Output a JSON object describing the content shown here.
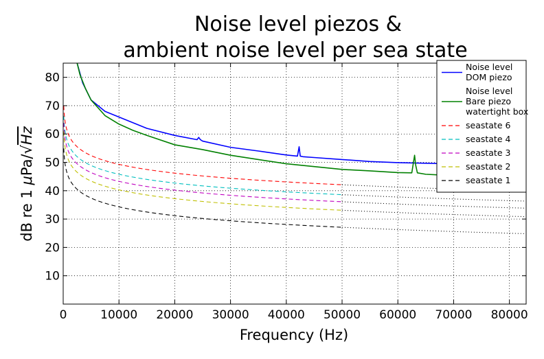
{
  "chart_data": {
    "type": "line",
    "title_lines": [
      "Noise level piezos &",
      "ambient noise level per sea state"
    ],
    "xlabel": "Frequency (Hz)",
    "ylabel_main": "dB re 1 ",
    "ylabel_mu": "μ",
    "ylabel_unit": "Pa/",
    "ylabel_sqrt": "√",
    "ylabel_hz": "Hz",
    "xlim": [
      0,
      83000
    ],
    "ylim": [
      0,
      85
    ],
    "x_ticks": [
      0,
      10000,
      20000,
      30000,
      40000,
      50000,
      60000,
      70000,
      80000
    ],
    "x_tick_labels": [
      "0",
      "10000",
      "20000",
      "30000",
      "40000",
      "50000",
      "60000",
      "70000",
      "80000"
    ],
    "y_ticks": [
      10,
      20,
      30,
      40,
      50,
      60,
      70,
      80
    ],
    "y_tick_labels": [
      "10",
      "20",
      "30",
      "40",
      "50",
      "60",
      "70",
      "80"
    ],
    "grid": true,
    "legend_placement": "top-right",
    "series": [
      {
        "name_lines": [
          "Noise level",
          "DOM piezo"
        ],
        "color": "#0000ff",
        "style": "solid",
        "x": [
          2500,
          3500,
          5000,
          7500,
          10000,
          12500,
          15000,
          20000,
          24000,
          24300,
          24600,
          25000,
          30000,
          35000,
          40000,
          42000,
          42300,
          42500,
          43000,
          45000,
          50000,
          55000,
          60000,
          65000,
          67000
        ],
        "y": [
          85,
          78,
          72,
          68,
          66,
          64,
          62,
          59.5,
          58,
          58.8,
          58,
          57.5,
          55.3,
          54,
          52.6,
          52.2,
          55.5,
          52.2,
          52,
          51.7,
          51,
          50.3,
          49.9,
          49.7,
          49.6
        ]
      },
      {
        "name_lines": [
          "Noise level",
          "Bare piezo",
          "watertight box"
        ],
        "color": "#008000",
        "style": "solid",
        "x": [
          2500,
          3000,
          4000,
          5000,
          7500,
          10000,
          12500,
          15000,
          20000,
          25000,
          30000,
          35000,
          40000,
          45000,
          50000,
          55000,
          60000,
          62500,
          62800,
          63000,
          63200,
          63500,
          65000,
          67000
        ],
        "y": [
          85,
          81,
          76,
          72,
          66.5,
          63.5,
          61.3,
          59.5,
          56.2,
          54.5,
          52.5,
          51,
          49.5,
          48.5,
          47.5,
          47,
          46.4,
          46.3,
          50,
          52.5,
          49,
          46.3,
          45.8,
          45.6
        ]
      },
      {
        "name_lines": [
          "seastate 6"
        ],
        "color": "#ff0000",
        "style": "dashed",
        "formula_offset": 90.5
      },
      {
        "name_lines": [
          "seastate 4"
        ],
        "color": "#00bfbf",
        "style": "dashed",
        "formula_offset": 87
      },
      {
        "name_lines": [
          "seastate 3"
        ],
        "color": "#bf00bf",
        "style": "dashed",
        "formula_offset": 84.5
      },
      {
        "name_lines": [
          "seastate 2"
        ],
        "color": "#bfbf00",
        "style": "dashed",
        "formula_offset": 81.5
      },
      {
        "name_lines": [
          "seastate 1"
        ],
        "color": "#000000",
        "style": "dashed",
        "formula_offset": 75.5
      }
    ],
    "seastate_model": {
      "db_per_log10_hz": -10.3,
      "dashed_from_hz": 100,
      "dashed_to_hz": 50000,
      "dotted_from_hz": 50000,
      "dotted_to_hz": 83000,
      "dotted_color": "#000000"
    }
  }
}
